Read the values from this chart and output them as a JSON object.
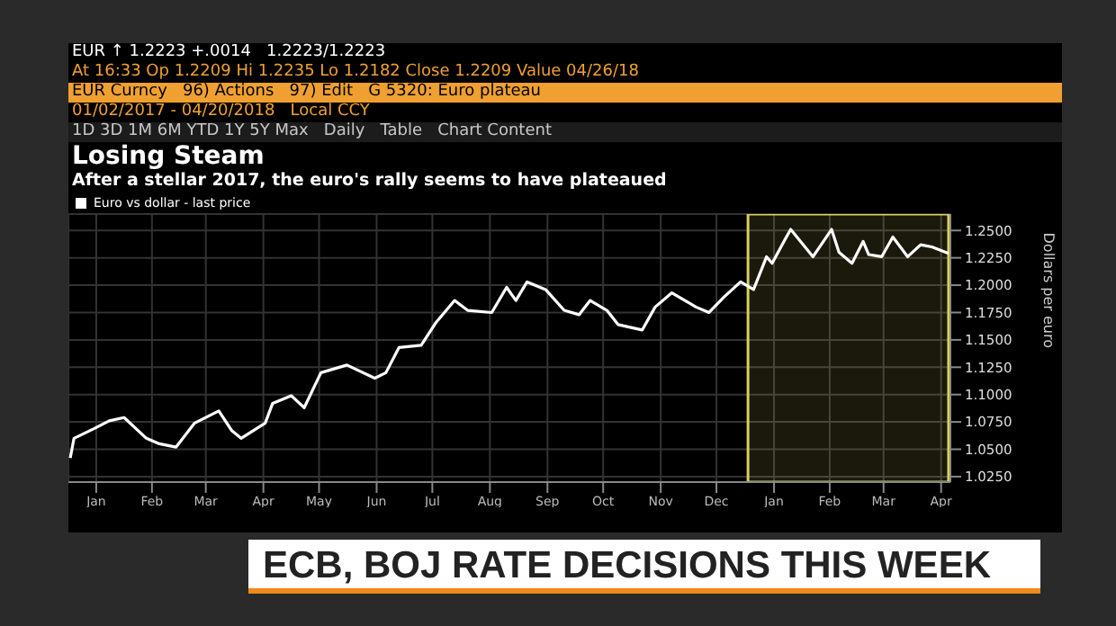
{
  "chart_data": {
    "type": "line",
    "title": "Losing Steam",
    "subtitle": "After a stellar 2017, the euro's rally seems to have plateaued",
    "ylabel": "Dollars per euro",
    "annotations": [
      "EUR ↑ 1.2223 +.0014   1.2223/1.2223",
      "At 16:33 Op 1.2209 Hi 1.2235 Lo 1.2182 Close 1.2209 Value 04/26/18",
      "EUR Curncy   96) Actions   97) Edit   G 5320: Euro plateau",
      "01/02/2017 - 04/20/2018   Local CCY",
      "1D 3D 1M 6M YTD 1Y 5Y Max   Daily   Table   Chart Content",
      "ECB, BOJ RATE DECISIONS THIS WEEK"
    ],
    "x": [
      "2017-01-02",
      "2017-01-04",
      "2017-01-15",
      "2017-01-23",
      "2017-01-31",
      "2017-02-12",
      "2017-02-19",
      "2017-02-28",
      "2017-03-10",
      "2017-03-23",
      "2017-03-30",
      "2017-04-04",
      "2017-04-17",
      "2017-04-21",
      "2017-05-01",
      "2017-05-08",
      "2017-05-17",
      "2017-05-31",
      "2017-06-15",
      "2017-06-21",
      "2017-06-28",
      "2017-07-10",
      "2017-07-18",
      "2017-07-28",
      "2017-08-04",
      "2017-08-17",
      "2017-08-25",
      "2017-08-30",
      "2017-09-05",
      "2017-09-15",
      "2017-09-25",
      "2017-10-03",
      "2017-10-09",
      "2017-10-18",
      "2017-10-24",
      "2017-11-06",
      "2017-11-13",
      "2017-11-22",
      "2017-12-05",
      "2017-12-12",
      "2017-12-20",
      "2017-12-29",
      "2018-01-05",
      "2018-01-12",
      "2018-01-15",
      "2018-01-22",
      "2018-01-25",
      "2018-02-06",
      "2018-02-16",
      "2018-02-20",
      "2018-02-27",
      "2018-03-05",
      "2018-03-08",
      "2018-03-15",
      "2018-03-21",
      "2018-03-29",
      "2018-04-05",
      "2018-04-11",
      "2018-04-20"
    ],
    "series": [
      {
        "name": "Euro vs dollar - last price",
        "color": "#ffffff",
        "values": [
          1.042,
          1.06,
          1.069,
          1.076,
          1.079,
          1.06,
          1.055,
          1.052,
          1.074,
          1.085,
          1.067,
          1.06,
          1.074,
          1.092,
          1.099,
          1.088,
          1.12,
          1.127,
          1.115,
          1.12,
          1.143,
          1.145,
          1.166,
          1.186,
          1.177,
          1.175,
          1.198,
          1.186,
          1.203,
          1.196,
          1.177,
          1.173,
          1.186,
          1.177,
          1.164,
          1.159,
          1.18,
          1.193,
          1.18,
          1.175,
          1.189,
          1.203,
          1.196,
          1.226,
          1.22,
          1.242,
          1.251,
          1.226,
          1.251,
          1.23,
          1.22,
          1.24,
          1.228,
          1.226,
          1.244,
          1.226,
          1.237,
          1.235,
          1.229
        ]
      }
    ],
    "xlim": [
      "2017-01-01",
      "2018-04-21"
    ],
    "xticks": [
      {
        "value": "2017-01-16",
        "label": "Jan"
      },
      {
        "value": "2017-02-15",
        "label": "Feb"
      },
      {
        "value": "2017-03-16",
        "label": "Mar"
      },
      {
        "value": "2017-04-16",
        "label": "Apr"
      },
      {
        "value": "2017-05-16",
        "label": "May"
      },
      {
        "value": "2017-06-16",
        "label": "Jun"
      },
      {
        "value": "2017-07-16",
        "label": "Jul"
      },
      {
        "value": "2017-08-16",
        "label": "Aug"
      },
      {
        "value": "2017-09-16",
        "label": "Sep"
      },
      {
        "value": "2017-10-16",
        "label": "Oct"
      },
      {
        "value": "2017-11-16",
        "label": "Nov"
      },
      {
        "value": "2017-12-16",
        "label": "Dec"
      },
      {
        "value": "2018-01-16",
        "label": "Jan"
      },
      {
        "value": "2018-02-15",
        "label": "Feb"
      },
      {
        "value": "2018-03-16",
        "label": "Mar"
      },
      {
        "value": "2018-04-16",
        "label": "Apr"
      }
    ],
    "ylim": [
      1.02,
      1.265
    ],
    "yticks": [
      {
        "value": 1.025,
        "label": "1.0250"
      },
      {
        "value": 1.05,
        "label": "1.0500"
      },
      {
        "value": 1.075,
        "label": "1.0750"
      },
      {
        "value": 1.1,
        "label": "1.1000"
      },
      {
        "value": 1.125,
        "label": "1.1250"
      },
      {
        "value": 1.15,
        "label": "1.1500"
      },
      {
        "value": 1.175,
        "label": "1.1750"
      },
      {
        "value": 1.2,
        "label": "1.2000"
      },
      {
        "value": 1.225,
        "label": "1.2250"
      },
      {
        "value": 1.25,
        "label": "1.2500"
      }
    ],
    "bands": [
      {
        "axis": "x",
        "from": "2018-01-02",
        "to": "2018-04-20",
        "color": "#d8d060"
      }
    ],
    "grid": true,
    "legend": "top left",
    "marker": "none",
    "line_style": "solid"
  }
}
